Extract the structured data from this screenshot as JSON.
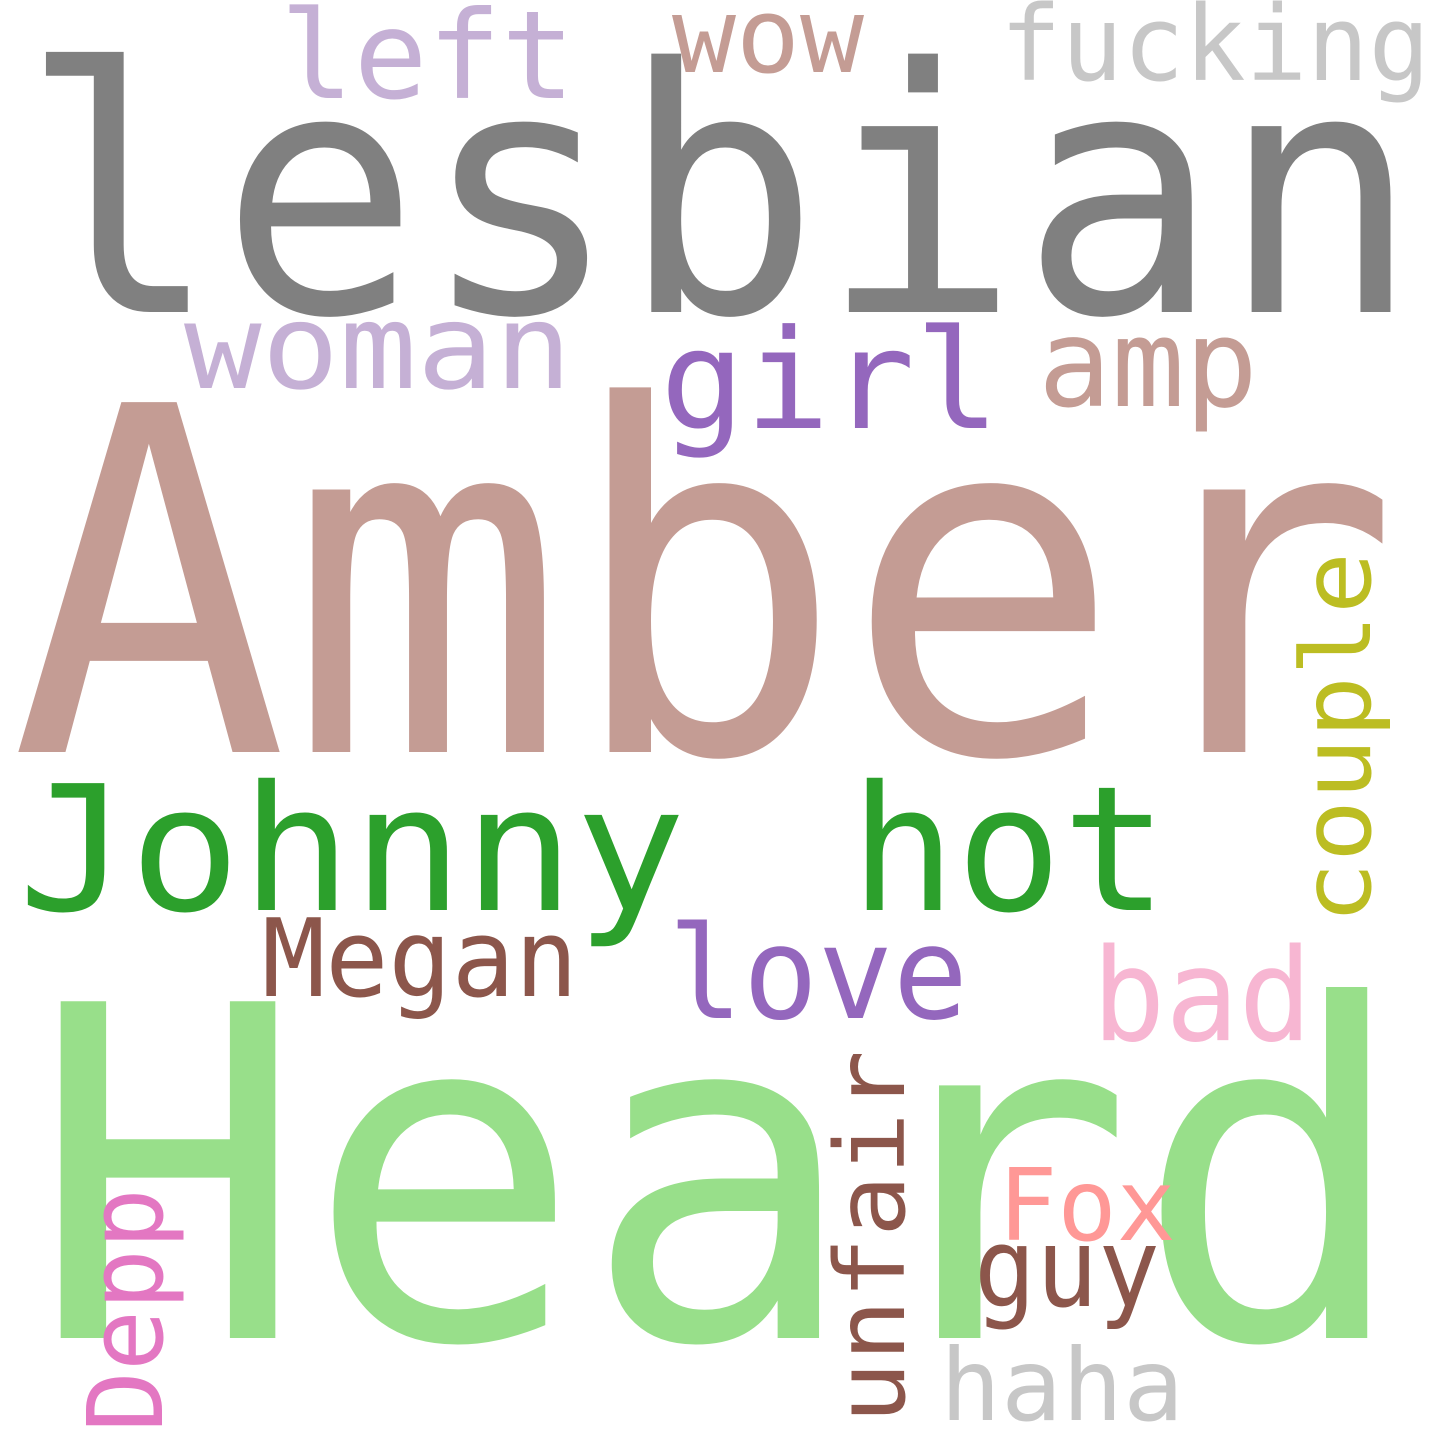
{
  "words": {
    "lesbian": {
      "text": "lesbian",
      "color": "#808080"
    },
    "left": {
      "text": "left",
      "color": "#c5b0d5"
    },
    "wow": {
      "text": "wow",
      "color": "#c49c94"
    },
    "fucking": {
      "text": "fucking",
      "color": "#c7c7c7"
    },
    "woman": {
      "text": "woman",
      "color": "#c5b0d5"
    },
    "girl": {
      "text": "girl",
      "color": "#9467bd"
    },
    "amp": {
      "text": "amp",
      "color": "#c49c94"
    },
    "amber": {
      "text": "Amber",
      "color": "#c49c94"
    },
    "couple": {
      "text": "couple",
      "color": "#bcbd22"
    },
    "johnny": {
      "text": "Johnny",
      "color": "#2ca02c"
    },
    "hot": {
      "text": "hot",
      "color": "#2ca02c"
    },
    "megan": {
      "text": "Megan",
      "color": "#8c564b"
    },
    "love": {
      "text": "love",
      "color": "#9467bd"
    },
    "bad": {
      "text": "bad",
      "color": "#f7b6d2"
    },
    "heard": {
      "text": "Heard",
      "color": "#98df8a"
    },
    "unfair": {
      "text": "unfair",
      "color": "#8c564b"
    },
    "fox": {
      "text": "Fox",
      "color": "#ff9896"
    },
    "guy": {
      "text": "guy",
      "color": "#8c564b"
    },
    "depp": {
      "text": "Depp",
      "color": "#e377c2"
    },
    "haha": {
      "text": "haha",
      "color": "#c7c7c7"
    }
  }
}
